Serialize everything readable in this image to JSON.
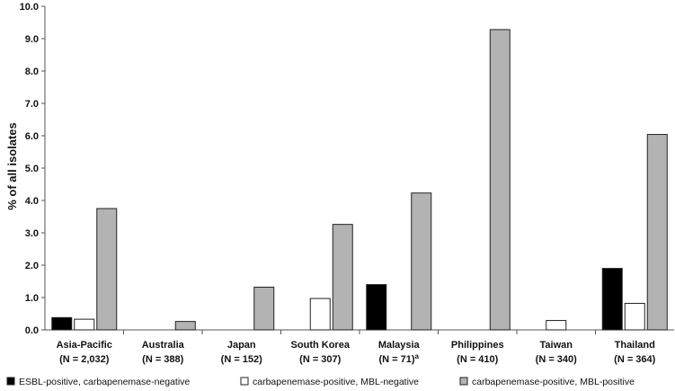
{
  "chart_data": {
    "type": "bar",
    "title": "",
    "xlabel": "",
    "ylabel": "% of all isolates",
    "ylim": [
      0,
      10
    ],
    "yticks": [
      "0.0",
      "1.0",
      "2.0",
      "3.0",
      "4.0",
      "5.0",
      "6.0",
      "7.0",
      "8.0",
      "9.0",
      "10.0"
    ],
    "grid": false,
    "legend_position": "bottom",
    "categories": [
      {
        "line1": "Asia-Pacific",
        "line2": "(N = 2,032)",
        "sup": ""
      },
      {
        "line1": "Australia",
        "line2": "(N = 388)",
        "sup": ""
      },
      {
        "line1": "Japan",
        "line2": "(N = 152)",
        "sup": ""
      },
      {
        "line1": "South Korea",
        "line2": "(N = 307)",
        "sup": ""
      },
      {
        "line1": "Malaysia",
        "line2": "(N = 71)",
        "sup": "a"
      },
      {
        "line1": "Philippines",
        "line2": "(N = 410)",
        "sup": ""
      },
      {
        "line1": "Taiwan",
        "line2": "(N = 340)",
        "sup": ""
      },
      {
        "line1": "Thailand",
        "line2": "(N = 364)",
        "sup": ""
      }
    ],
    "series": [
      {
        "name": "ESBL-positive, carbapenemase-negative",
        "color": "#000000",
        "values": [
          0.38,
          0,
          0,
          0,
          1.4,
          0,
          0,
          1.9
        ]
      },
      {
        "name": "carbapenemase-positive, MBL-negative",
        "color": "#ffffff",
        "values": [
          0.33,
          0,
          0,
          0.97,
          0,
          0,
          0.29,
          0.82
        ]
      },
      {
        "name": "carbapenemase-positive, MBL-positive",
        "color": "#b3b3b3",
        "values": [
          3.75,
          0.26,
          1.32,
          3.26,
          4.23,
          9.28,
          0,
          6.04
        ]
      }
    ]
  }
}
